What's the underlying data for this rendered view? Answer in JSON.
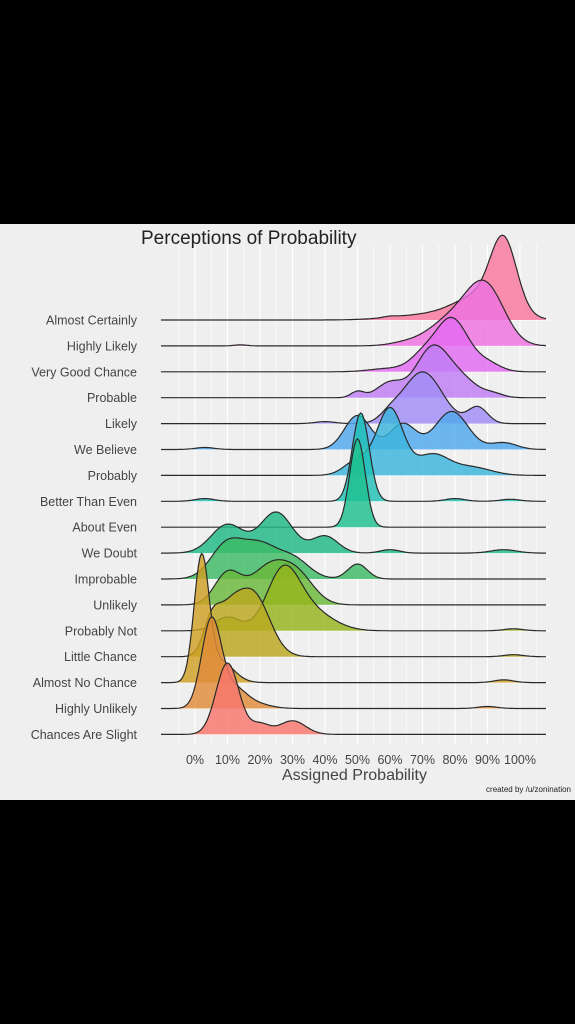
{
  "title": "Perceptions of Probability",
  "credit": "created by /u/zonination",
  "chart_data": {
    "type": "ridgeline",
    "title": "Perceptions of Probability",
    "xlabel": "Assigned Probability",
    "ylabel": "",
    "xlim": [
      -10,
      110
    ],
    "x_ticks": [
      "0%",
      "10%",
      "20%",
      "30%",
      "40%",
      "50%",
      "60%",
      "70%",
      "80%",
      "90%",
      "100%"
    ],
    "grid": true,
    "legend": "none",
    "series": [
      {
        "name": "Almost Certainly",
        "color": "#f9769d",
        "peaks": [
          [
            95,
            4,
            1.0
          ],
          [
            88,
            8,
            0.35
          ],
          [
            70,
            10,
            0.07
          ],
          [
            60,
            2,
            0.015
          ]
        ]
      },
      {
        "name": "Highly Likely",
        "color": "#ee72e0",
        "peaks": [
          [
            88,
            6,
            0.78
          ],
          [
            77,
            6,
            0.3
          ],
          [
            92,
            5,
            0.18
          ],
          [
            65,
            5,
            0.05
          ],
          [
            14,
            2,
            0.015
          ]
        ]
      },
      {
        "name": "Very Good Chance",
        "color": "#e36af2",
        "peaks": [
          [
            79,
            5,
            0.78
          ],
          [
            70,
            4,
            0.2
          ],
          [
            90,
            4,
            0.12
          ],
          [
            60,
            6,
            0.05
          ]
        ]
      },
      {
        "name": "Probable",
        "color": "#c07ef5",
        "peaks": [
          [
            73,
            5,
            0.72
          ],
          [
            60,
            4,
            0.22
          ],
          [
            82,
            5,
            0.25
          ],
          [
            50,
            2,
            0.09
          ],
          [
            92,
            3,
            0.05
          ]
        ]
      },
      {
        "name": "Likely",
        "color": "#a18cf7",
        "peaks": [
          [
            70,
            6,
            0.76
          ],
          [
            60,
            3,
            0.1
          ],
          [
            87,
            3,
            0.24
          ],
          [
            40,
            3,
            0.03
          ]
        ]
      },
      {
        "name": "We Believe",
        "color": "#4fa8ee",
        "peaks": [
          [
            79,
            5,
            0.56
          ],
          [
            50,
            4,
            0.5
          ],
          [
            64,
            4,
            0.38
          ],
          [
            95,
            4,
            0.1
          ],
          [
            3,
            3,
            0.03
          ]
        ]
      },
      {
        "name": "Probably",
        "color": "#3ab4dd",
        "peaks": [
          [
            60,
            4,
            0.98
          ],
          [
            73,
            5,
            0.3
          ],
          [
            50,
            4,
            0.22
          ],
          [
            85,
            6,
            0.12
          ]
        ]
      },
      {
        "name": "Better Than Even",
        "color": "#1fbfb6",
        "peaks": [
          [
            51,
            2.6,
            1.3
          ],
          [
            80,
            3,
            0.04
          ],
          [
            97,
            3,
            0.03
          ],
          [
            3,
            3,
            0.04
          ]
        ]
      },
      {
        "name": "About Even",
        "color": "#1fbf8f",
        "peaks": [
          [
            50,
            2.4,
            1.3
          ]
        ]
      },
      {
        "name": "We Doubt",
        "color": "#20ba85",
        "peaks": [
          [
            25,
            5,
            0.6
          ],
          [
            10,
            5,
            0.42
          ],
          [
            40,
            4,
            0.25
          ],
          [
            60,
            3,
            0.05
          ],
          [
            95,
            4,
            0.05
          ]
        ]
      },
      {
        "name": "Improbable",
        "color": "#3dbb64",
        "peaks": [
          [
            10,
            5,
            0.52
          ],
          [
            20,
            5,
            0.45
          ],
          [
            30,
            5,
            0.3
          ],
          [
            50,
            3,
            0.22
          ]
        ]
      },
      {
        "name": "Unlikely",
        "color": "#6ab83a",
        "peaks": [
          [
            23,
            6,
            0.56
          ],
          [
            10,
            4,
            0.45
          ],
          [
            32,
            5,
            0.35
          ]
        ]
      },
      {
        "name": "Probably Not",
        "color": "#96b51c",
        "peaks": [
          [
            27,
            5,
            0.8
          ],
          [
            35,
            7,
            0.3
          ],
          [
            10,
            4,
            0.2
          ],
          [
            98,
            3,
            0.03
          ]
        ]
      },
      {
        "name": "Little Chance",
        "color": "#bba71e",
        "peaks": [
          [
            18,
            5,
            0.9
          ],
          [
            10,
            4,
            0.55
          ],
          [
            5,
            2.5,
            0.4
          ],
          [
            98,
            3,
            0.03
          ]
        ]
      },
      {
        "name": "Almost No Chance",
        "color": "#d0a024",
        "peaks": [
          [
            2,
            2.3,
            1.8
          ],
          [
            8,
            4,
            0.3
          ],
          [
            95,
            3,
            0.04
          ]
        ]
      },
      {
        "name": "Highly Unlikely",
        "color": "#e08c3a",
        "peaks": [
          [
            5,
            3,
            1.28
          ],
          [
            12,
            4,
            0.3
          ],
          [
            20,
            4,
            0.05
          ],
          [
            90,
            3,
            0.03
          ]
        ]
      },
      {
        "name": "Chances Are Slight",
        "color": "#f8766d",
        "peaks": [
          [
            10,
            3.5,
            1.05
          ],
          [
            20,
            3,
            0.15
          ],
          [
            30,
            4,
            0.2
          ]
        ]
      }
    ]
  }
}
